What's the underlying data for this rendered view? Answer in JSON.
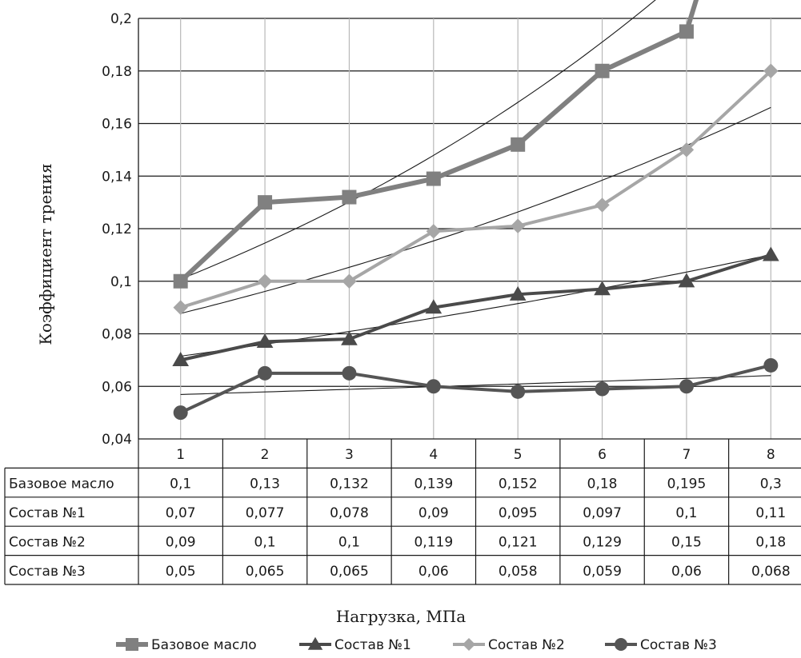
{
  "chart_data": {
    "type": "line",
    "title": "",
    "xlabel": "Нагрузка, МПа",
    "ylabel": "Коэффициент трения",
    "categories": [
      "1",
      "2",
      "3",
      "4",
      "5",
      "6",
      "7",
      "8"
    ],
    "ylim": [
      0.04,
      0.2
    ],
    "y_ticks": [
      "0,04",
      "0,06",
      "0,08",
      "0,1",
      "0,12",
      "0,14",
      "0,16",
      "0,18",
      "0,2"
    ],
    "grid": true,
    "legend_position": "bottom",
    "data_table": true,
    "trendlines": true,
    "series": [
      {
        "name": "Базовое масло",
        "values": [
          0.1,
          0.13,
          0.132,
          0.139,
          0.152,
          0.18,
          0.195,
          0.3
        ],
        "labels": [
          "0,1",
          "0,13",
          "0,132",
          "0,139",
          "0,152",
          "0,18",
          "0,195",
          "0,3"
        ],
        "marker": "square",
        "color": "#808080"
      },
      {
        "name": "Состав №1",
        "values": [
          0.07,
          0.077,
          0.078,
          0.09,
          0.095,
          0.097,
          0.1,
          0.11
        ],
        "labels": [
          "0,07",
          "0,077",
          "0,078",
          "0,09",
          "0,095",
          "0,097",
          "0,1",
          "0,11"
        ],
        "marker": "triangle",
        "color": "#4a4a4a"
      },
      {
        "name": "Состав №2",
        "values": [
          0.09,
          0.1,
          0.1,
          0.119,
          0.121,
          0.129,
          0.15,
          0.18
        ],
        "labels": [
          "0,09",
          "0,1",
          "0,1",
          "0,119",
          "0,121",
          "0,129",
          "0,15",
          "0,18"
        ],
        "marker": "diamond",
        "color": "#a6a6a6"
      },
      {
        "name": "Состав №3",
        "values": [
          0.05,
          0.065,
          0.065,
          0.06,
          0.058,
          0.059,
          0.06,
          0.068
        ],
        "labels": [
          "0,05",
          "0,065",
          "0,065",
          "0,06",
          "0,058",
          "0,059",
          "0,06",
          "0,068"
        ],
        "marker": "circle",
        "color": "#555555"
      }
    ]
  }
}
